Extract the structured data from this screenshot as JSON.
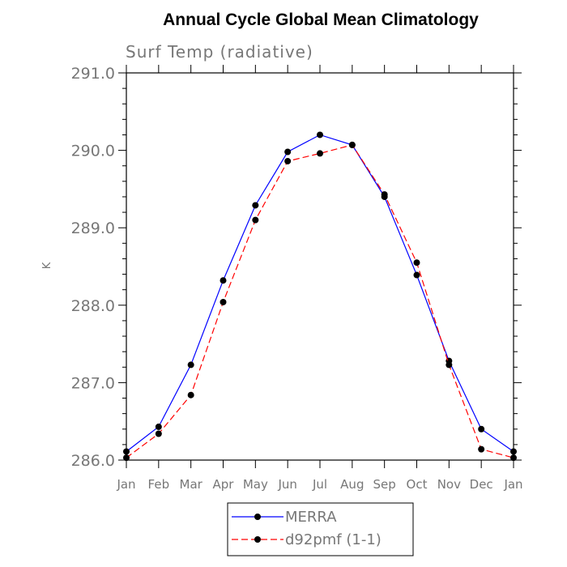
{
  "chart_data": {
    "type": "line",
    "title": "Annual Cycle Global Mean Climatology",
    "subtitle": "Surf Temp (radiative)",
    "xlabel": "",
    "ylabel": "K",
    "categories": [
      "Jan",
      "Feb",
      "Mar",
      "Apr",
      "May",
      "Jun",
      "Jul",
      "Aug",
      "Sep",
      "Oct",
      "Nov",
      "Dec",
      "Jan"
    ],
    "ylim": [
      286.0,
      291.0
    ],
    "yticks": [
      "286.0",
      "287.0",
      "288.0",
      "289.0",
      "290.0",
      "291.0"
    ],
    "grid": false,
    "legend_position": "bottom-center",
    "series": [
      {
        "name": "MERRA",
        "color": "#0000ff",
        "dash": "solid",
        "marker": "circle",
        "values": [
          286.11,
          286.43,
          287.23,
          288.32,
          289.29,
          289.98,
          290.2,
          290.07,
          289.4,
          288.39,
          287.28,
          286.4,
          286.11
        ]
      },
      {
        "name": "d92pmf (1-1)",
        "color": "#ff0000",
        "dash": "dashed",
        "marker": "circle",
        "values": [
          286.03,
          286.34,
          286.84,
          288.04,
          289.1,
          289.86,
          289.96,
          290.07,
          289.43,
          288.55,
          287.23,
          286.14,
          286.03
        ]
      }
    ]
  }
}
